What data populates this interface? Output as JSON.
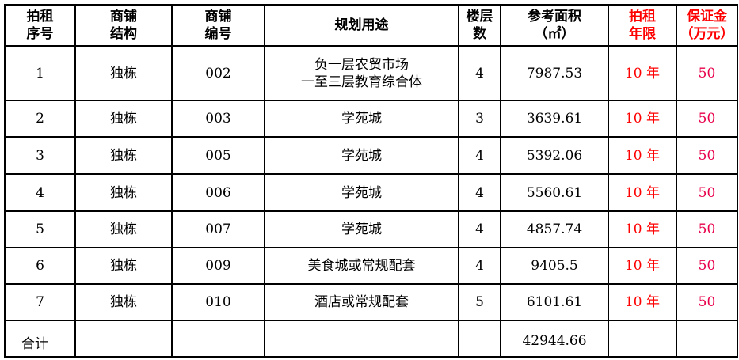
{
  "headers": [
    "拍租\n序号",
    "商铺\n结构",
    "商铺\n编号",
    "规划用途",
    "楼层\n数",
    "参考面积\n（㎡）",
    "拍租\n年限",
    "保证金\n（万元）"
  ],
  "rows": [
    [
      "1",
      "独栋",
      "002",
      "负一层农贸市场\n一至三层教育综合体",
      "4",
      "7987.53",
      "10 年",
      "50"
    ],
    [
      "2",
      "独栋",
      "003",
      "学苑城",
      "3",
      "3639.61",
      "10 年",
      "50"
    ],
    [
      "3",
      "独栋",
      "005",
      "学苑城",
      "4",
      "5392.06",
      "10 年",
      "50"
    ],
    [
      "4",
      "独栋",
      "006",
      "学苑城",
      "4",
      "5560.61",
      "10 年",
      "50"
    ],
    [
      "5",
      "独栋",
      "007",
      "学苑城",
      "4",
      "4857.74",
      "10 年",
      "50"
    ],
    [
      "6",
      "独栋",
      "009",
      "美食城或常规配套",
      "4",
      "9405.5",
      "10 年",
      "50"
    ],
    [
      "7",
      "独栋",
      "010",
      "酒店或常规配套",
      "5",
      "6101.61",
      "10 年",
      "50"
    ]
  ],
  "total": {
    "label": "合计",
    "area": "42944.66"
  },
  "colors": {
    "highlight": "#ff0000"
  }
}
